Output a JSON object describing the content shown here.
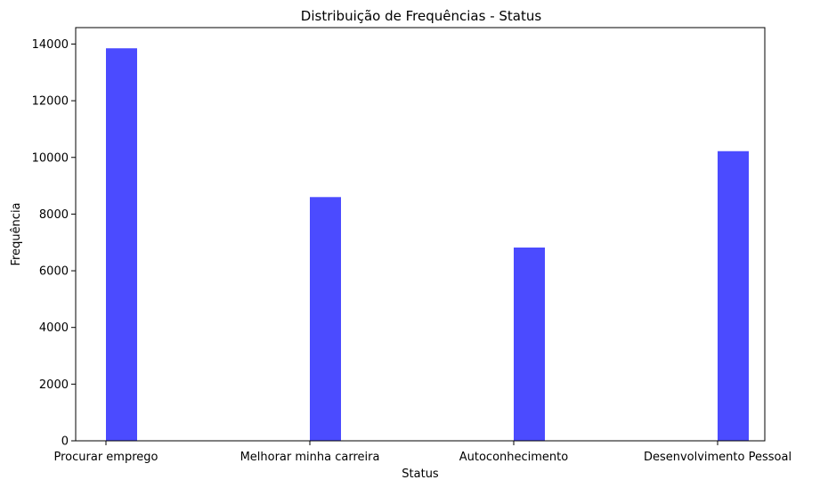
{
  "chart_data": {
    "type": "bar",
    "title": "Distribuição de Frequências - Status",
    "xlabel": "Status",
    "ylabel": "Frequência",
    "categories": [
      "Procurar emprego",
      "Melhorar minha carreira",
      "Autoconhecimento",
      "Desenvolvimento Pessoal"
    ],
    "values": [
      13850,
      8600,
      6820,
      10220
    ],
    "ylim": [
      0,
      14580
    ],
    "yticks": [
      "0",
      "2000",
      "4000",
      "6000",
      "8000",
      "10000",
      "12000",
      "14000"
    ],
    "grid": false,
    "bar_color": "#4b4bff"
  }
}
